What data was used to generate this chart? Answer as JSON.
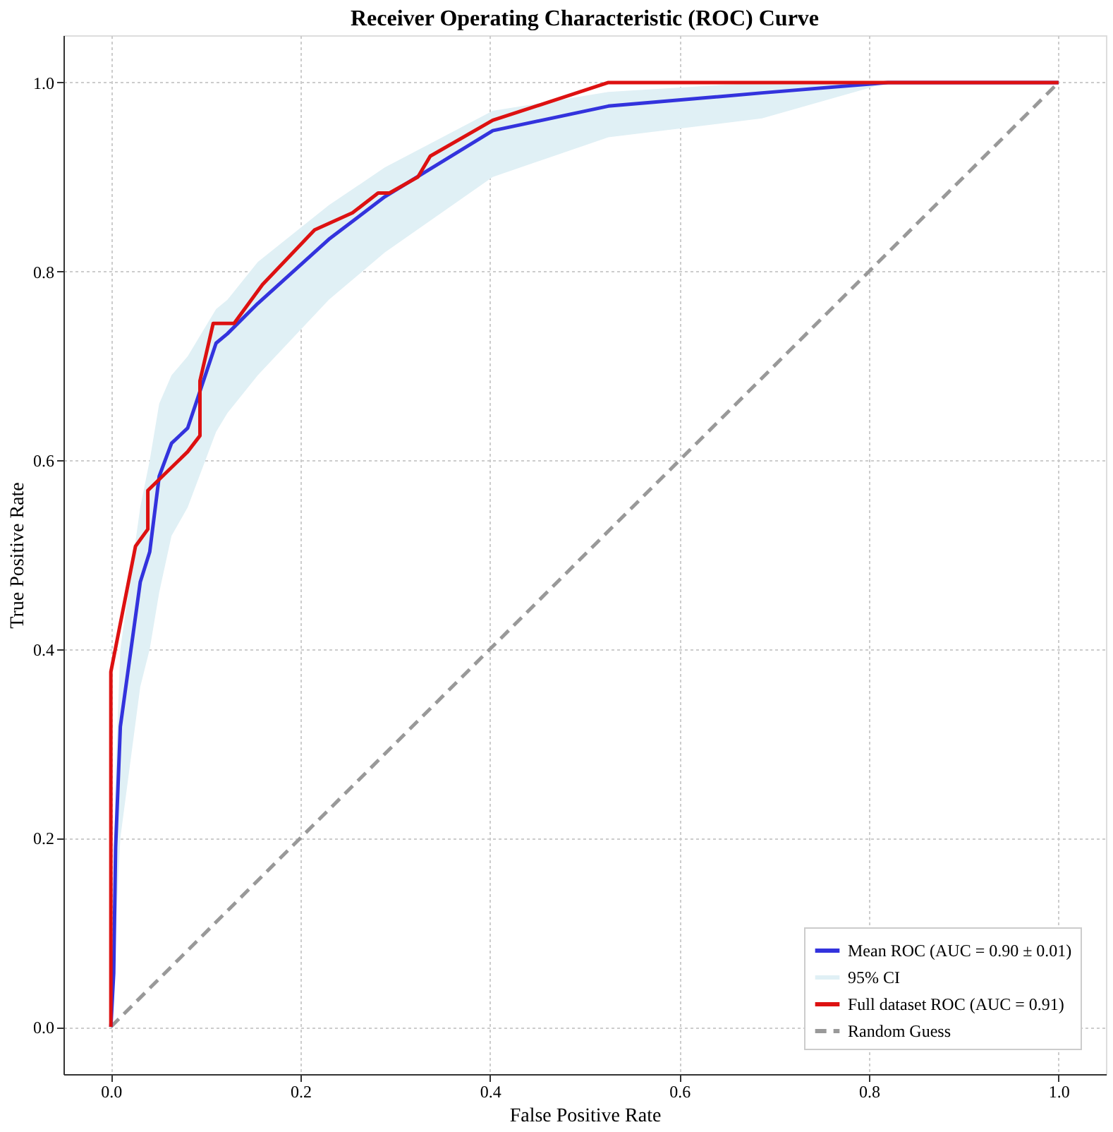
{
  "chart_data": {
    "type": "line",
    "title": "Receiver Operating Characteristic (ROC) Curve",
    "xlabel": "False Positive Rate",
    "ylabel": "True Positive Rate",
    "xlim": [
      -0.05,
      1.05
    ],
    "ylim": [
      -0.05,
      1.05
    ],
    "xticks": [
      {
        "value": 0,
        "label": "0.0"
      },
      {
        "value": 0.2,
        "label": "0.2"
      },
      {
        "value": 0.4,
        "label": "0.4"
      },
      {
        "value": 0.6,
        "label": "0.6"
      },
      {
        "value": 0.8,
        "label": "0.8"
      },
      {
        "value": 1,
        "label": "1.0"
      }
    ],
    "yticks": [
      {
        "value": 0,
        "label": "0.0"
      },
      {
        "value": 0.2,
        "label": "0.2"
      },
      {
        "value": 0.4,
        "label": "0.4"
      },
      {
        "value": 0.6,
        "label": "0.6"
      },
      {
        "value": 0.8,
        "label": "0.8"
      },
      {
        "value": 1,
        "label": "1.0"
      }
    ],
    "grid": true,
    "legend": "bottom right",
    "marker": "none",
    "series": [
      {
        "name": "Mean ROC (AUC = 0.90 ± 0.01)",
        "color": "#3333dd",
        "line_style": "solid",
        "x": [
          0,
          0.003,
          0.005,
          0.01,
          0.031,
          0.041,
          0.051,
          0.064,
          0.081,
          0.111,
          0.123,
          0.155,
          0.23,
          0.289,
          0.403,
          0.525,
          0.687,
          0.82,
          1
        ],
        "values": [
          0,
          0.057,
          0.19,
          0.318,
          0.471,
          0.503,
          0.583,
          0.618,
          0.634,
          0.724,
          0.734,
          0.766,
          0.834,
          0.879,
          0.949,
          0.975,
          0.989,
          1,
          1
        ],
        "lower": [
          0,
          0.02,
          0.1,
          0.2,
          0.36,
          0.4,
          0.46,
          0.52,
          0.55,
          0.63,
          0.65,
          0.69,
          0.77,
          0.82,
          0.9,
          0.942,
          0.962,
          1,
          1
        ],
        "upper": [
          0,
          0.15,
          0.27,
          0.4,
          0.55,
          0.6,
          0.66,
          0.69,
          0.71,
          0.76,
          0.77,
          0.81,
          0.87,
          0.91,
          0.97,
          0.99,
          1,
          1,
          1
        ]
      },
      {
        "name": "95% CI",
        "type": "area",
        "color": "#e0f0f5"
      },
      {
        "name": "Full dataset ROC (AUC = 0.91)",
        "color": "#dd1111",
        "line_style": "solid",
        "x": [
          0,
          0,
          0.026,
          0.039,
          0.039,
          0.081,
          0.094,
          0.094,
          0.108,
          0.13,
          0.16,
          0.215,
          0.255,
          0.282,
          0.294,
          0.324,
          0.337,
          0.403,
          0.525,
          1
        ],
        "values": [
          0,
          0.376,
          0.509,
          0.527,
          0.568,
          0.609,
          0.626,
          0.684,
          0.745,
          0.745,
          0.786,
          0.844,
          0.862,
          0.883,
          0.883,
          0.9,
          0.922,
          0.96,
          1,
          1
        ]
      },
      {
        "name": "Random Guess",
        "color": "#999999",
        "line_style": "dashed",
        "x": [
          0,
          1
        ],
        "values": [
          0,
          1
        ]
      }
    ]
  }
}
